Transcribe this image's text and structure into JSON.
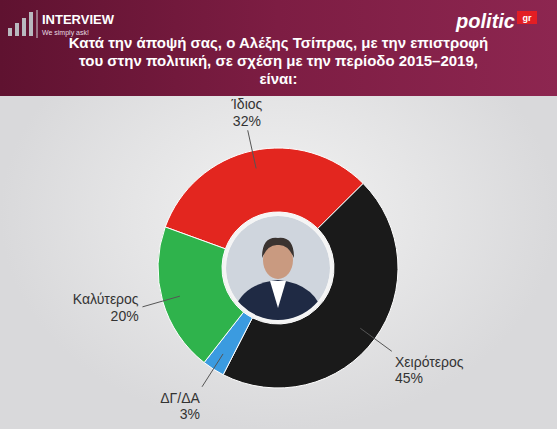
{
  "chart_data": {
    "type": "pie",
    "title": "Κατά την άποψή σας, ο Αλέξης Τσίπρας, με την επιστροφή του στην πολιτική, σε σχέση με την περίοδο 2015–2019, είναι:",
    "categories": [
      "Ίδιος",
      "Χειρότερος",
      "ΔΓ/ΔΑ",
      "Καλύτερος"
    ],
    "values": [
      32,
      45,
      3,
      20
    ],
    "value_labels": [
      "32%",
      "45%",
      "3%",
      "20%"
    ],
    "colors": [
      "#e3261f",
      "#1a1a1a",
      "#3b9be0",
      "#2fb34c"
    ],
    "data_labels": true,
    "annotations": [
      "INTERVIEW",
      "We simply ask!",
      "politic",
      "gr"
    ]
  }
}
